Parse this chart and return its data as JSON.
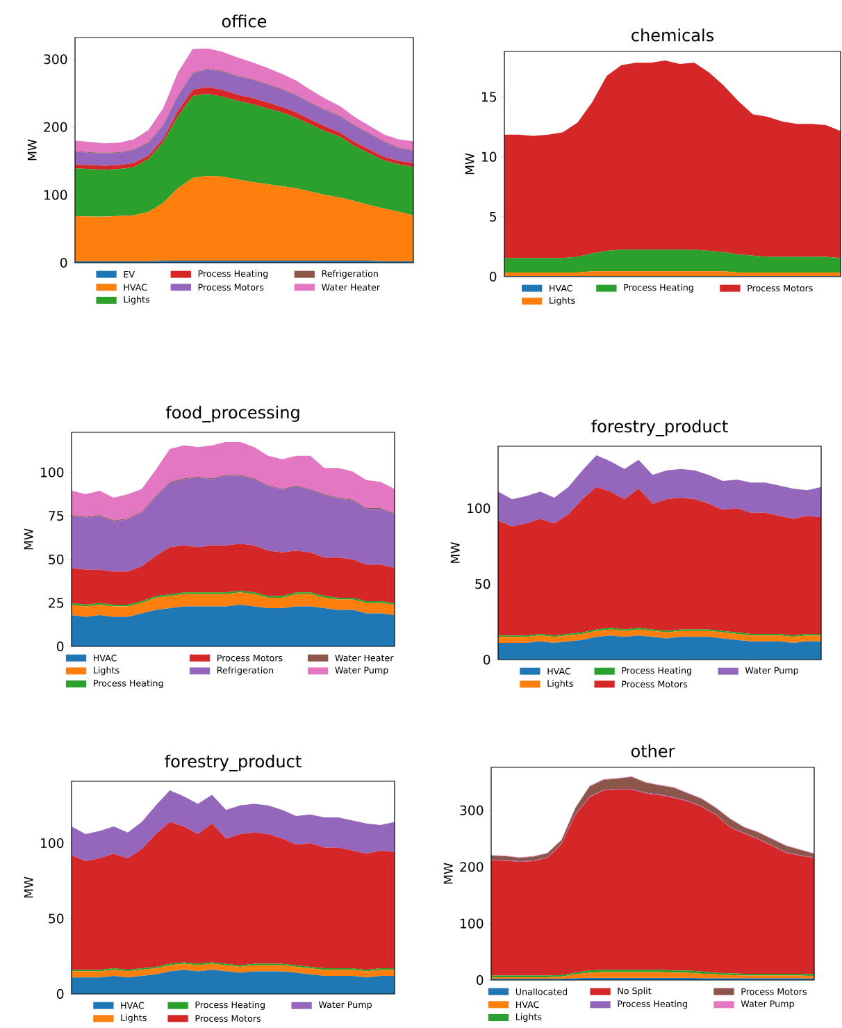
{
  "chart_data": [
    {
      "type": "area",
      "stacked": true,
      "title": "office",
      "ylabel": "MW",
      "legend": "bottom",
      "tick_labels": "y",
      "categories": [
        null,
        null,
        null,
        null,
        null,
        null,
        null,
        null,
        null,
        null,
        null,
        null,
        null,
        null,
        null,
        null,
        null,
        null,
        null,
        null,
        null,
        null,
        null,
        null
      ],
      "ylim": [
        0,
        332
      ],
      "yticks": [
        0,
        100,
        200,
        300
      ],
      "series": [
        {
          "name": "EV",
          "color": "#1f77b4",
          "values": [
            2,
            2,
            2,
            2,
            2,
            2,
            3,
            3,
            3,
            3,
            3,
            3,
            3,
            3,
            3,
            3,
            3,
            3,
            3,
            3,
            3,
            2,
            2,
            2
          ]
        },
        {
          "name": "HVAC",
          "color": "#ff7f0e",
          "values": [
            67,
            66,
            66,
            67,
            68,
            73,
            85,
            107,
            122,
            125,
            124,
            120,
            116,
            113,
            110,
            107,
            102,
            97,
            93,
            88,
            82,
            78,
            73,
            68
          ]
        },
        {
          "name": "Lights",
          "color": "#2ca02c",
          "values": [
            70,
            70,
            69,
            69,
            71,
            78,
            90,
            106,
            121,
            121,
            118,
            116,
            115,
            112,
            109,
            104,
            99,
            94,
            90,
            81,
            76,
            71,
            70,
            71
          ]
        },
        {
          "name": "Process Heating",
          "color": "#d62728",
          "values": [
            6,
            6,
            6,
            6,
            6,
            5,
            5,
            8,
            9,
            10,
            10,
            9,
            9,
            9,
            8,
            8,
            7,
            7,
            6,
            6,
            6,
            5,
            5,
            6
          ]
        },
        {
          "name": "Process Motors",
          "color": "#9467bd",
          "values": [
            19,
            18,
            18,
            18,
            19,
            19,
            20,
            22,
            24,
            26,
            27,
            27,
            27,
            26,
            26,
            25,
            24,
            24,
            24,
            24,
            23,
            22,
            19,
            18
          ]
        },
        {
          "name": "Refrigeration",
          "color": "#8c564b",
          "values": [
            1,
            1,
            1,
            1,
            1,
            1,
            1,
            1,
            1,
            1,
            1,
            1,
            1,
            1,
            1,
            1,
            1,
            1,
            1,
            1,
            1,
            1,
            1,
            1
          ]
        },
        {
          "name": "Water Heater",
          "color": "#e377c2",
          "values": [
            15,
            15,
            14,
            14,
            15,
            18,
            24,
            34,
            35,
            30,
            28,
            27,
            25,
            24,
            22,
            21,
            19,
            16,
            14,
            12,
            11,
            10,
            12,
            13
          ]
        }
      ]
    },
    {
      "type": "area",
      "stacked": true,
      "title": "chemicals",
      "ylabel": "MW",
      "legend": "bottom",
      "tick_labels": "y",
      "categories": [
        null,
        null,
        null,
        null,
        null,
        null,
        null,
        null,
        null,
        null,
        null,
        null,
        null,
        null,
        null,
        null,
        null,
        null,
        null,
        null,
        null,
        null,
        null,
        null
      ],
      "ylim": [
        0,
        18.8
      ],
      "yticks": [
        0,
        5,
        10,
        15
      ],
      "series": [
        {
          "name": "HVAC",
          "color": "#1f77b4",
          "values": [
            0.05,
            0.05,
            0.05,
            0.05,
            0.05,
            0.05,
            0.05,
            0.05,
            0.05,
            0.05,
            0.05,
            0.05,
            0.05,
            0.05,
            0.05,
            0.05,
            0.05,
            0.05,
            0.05,
            0.05,
            0.05,
            0.05,
            0.05,
            0.05
          ]
        },
        {
          "name": "Lights",
          "color": "#ff7f0e",
          "values": [
            0.3,
            0.3,
            0.3,
            0.3,
            0.3,
            0.3,
            0.4,
            0.4,
            0.4,
            0.4,
            0.4,
            0.4,
            0.4,
            0.4,
            0.4,
            0.4,
            0.3,
            0.3,
            0.3,
            0.3,
            0.3,
            0.3,
            0.3,
            0.3
          ]
        },
        {
          "name": "Process Heating",
          "color": "#2ca02c",
          "values": [
            1.2,
            1.2,
            1.2,
            1.2,
            1.2,
            1.3,
            1.5,
            1.7,
            1.8,
            1.8,
            1.8,
            1.8,
            1.8,
            1.8,
            1.7,
            1.6,
            1.5,
            1.4,
            1.3,
            1.3,
            1.3,
            1.3,
            1.3,
            1.2
          ]
        },
        {
          "name": "Process Motors",
          "color": "#d62728",
          "values": [
            10.3,
            10.3,
            10.2,
            10.3,
            10.5,
            11.2,
            12.6,
            14.6,
            15.4,
            15.6,
            15.6,
            15.8,
            15.5,
            15.6,
            14.9,
            13.9,
            12.8,
            11.8,
            11.7,
            11.3,
            11.1,
            11.1,
            11.0,
            10.6
          ]
        }
      ]
    },
    {
      "type": "area",
      "stacked": true,
      "title": "food_processing",
      "ylabel": "MW",
      "legend": "bottom",
      "tick_labels": "y",
      "categories": [
        null,
        null,
        null,
        null,
        null,
        null,
        null,
        null,
        null,
        null,
        null,
        null,
        null,
        null,
        null,
        null,
        null,
        null,
        null,
        null,
        null,
        null,
        null,
        null
      ],
      "ylim": [
        0,
        123
      ],
      "yticks": [
        0,
        25,
        50,
        75,
        100
      ],
      "series": [
        {
          "name": "HVAC",
          "color": "#1f77b4",
          "values": [
            18,
            17,
            18,
            17,
            17,
            19,
            21,
            22,
            23,
            23,
            23,
            23,
            24,
            23,
            22,
            22,
            23,
            23,
            22,
            21,
            21,
            19,
            19,
            18
          ]
        },
        {
          "name": "Lights",
          "color": "#ff7f0e",
          "values": [
            6,
            6,
            6,
            6,
            6,
            6,
            7,
            7,
            7,
            7,
            7,
            7,
            7,
            7,
            6,
            6,
            7,
            7,
            6,
            6,
            6,
            6,
            6,
            6
          ]
        },
        {
          "name": "Process Heating",
          "color": "#2ca02c",
          "values": [
            1,
            1,
            1,
            1,
            1,
            1,
            1,
            1,
            1,
            1,
            1,
            1,
            1,
            1,
            1,
            1,
            1,
            1,
            1,
            1,
            1,
            1,
            1,
            1
          ]
        },
        {
          "name": "Process Motors",
          "color": "#d62728",
          "values": [
            20,
            20,
            19,
            19,
            19,
            20,
            23,
            27,
            27,
            26,
            27,
            27,
            27,
            27,
            26,
            25,
            24,
            23,
            22,
            23,
            22,
            21,
            21,
            20
          ]
        },
        {
          "name": "Refrigeration",
          "color": "#9467bd",
          "values": [
            30,
            30,
            31,
            29,
            30,
            31,
            34,
            37,
            38,
            40,
            38,
            40,
            39,
            38,
            37,
            36,
            37,
            36,
            36,
            34,
            34,
            32,
            32,
            31
          ]
        },
        {
          "name": "Water Heater",
          "color": "#8c564b",
          "values": [
            0.5,
            0.5,
            0.5,
            0.5,
            0.5,
            0.5,
            0.5,
            0.5,
            0.5,
            0.5,
            0.5,
            0.5,
            0.5,
            0.5,
            0.5,
            0.5,
            0.5,
            0.5,
            0.5,
            0.5,
            0.5,
            0.5,
            0.5,
            0.5
          ]
        },
        {
          "name": "Water Pump",
          "color": "#e377c2",
          "values": [
            14,
            13,
            14,
            13,
            14,
            13,
            15,
            19,
            19,
            17,
            19,
            19,
            19,
            18,
            17,
            17,
            17,
            19,
            15,
            17,
            16,
            16,
            15,
            14
          ]
        }
      ]
    },
    {
      "type": "area",
      "stacked": true,
      "title": "forestry_product",
      "ylabel": "MW",
      "legend": "bottom",
      "tick_labels": "y",
      "categories": [
        null,
        null,
        null,
        null,
        null,
        null,
        null,
        null,
        null,
        null,
        null,
        null,
        null,
        null,
        null,
        null,
        null,
        null,
        null,
        null,
        null,
        null,
        null,
        null
      ],
      "ylim": [
        0,
        141
      ],
      "yticks": [
        0,
        50,
        100
      ],
      "series": [
        {
          "name": "HVAC",
          "color": "#1f77b4",
          "values": [
            11,
            11,
            11,
            12,
            11,
            12,
            13,
            15,
            16,
            15,
            16,
            15,
            14,
            15,
            15,
            15,
            14,
            13,
            12,
            12,
            12,
            11,
            12,
            12
          ]
        },
        {
          "name": "Lights",
          "color": "#ff7f0e",
          "values": [
            4,
            4,
            4,
            4,
            4,
            4,
            4,
            4,
            4,
            4,
            4,
            4,
            4,
            4,
            4,
            4,
            4,
            4,
            4,
            4,
            4,
            4,
            4,
            4
          ]
        },
        {
          "name": "Process Heating",
          "color": "#2ca02c",
          "values": [
            1,
            1,
            1,
            1,
            1,
            1,
            1,
            1,
            1,
            1,
            1,
            1,
            1,
            1,
            1,
            1,
            1,
            1,
            1,
            1,
            1,
            1,
            1,
            1
          ]
        },
        {
          "name": "Process Motors",
          "color": "#d62728",
          "values": [
            76,
            72,
            74,
            76,
            74,
            79,
            88,
            94,
            90,
            86,
            92,
            83,
            87,
            87,
            86,
            83,
            80,
            82,
            80,
            80,
            78,
            77,
            78,
            77
          ]
        },
        {
          "name": "Water Pump",
          "color": "#9467bd",
          "values": [
            19,
            18,
            18,
            18,
            17,
            18,
            19,
            21,
            20,
            20,
            19,
            19,
            19,
            19,
            19,
            19,
            19,
            19,
            20,
            20,
            20,
            20,
            17,
            20
          ]
        }
      ]
    },
    {
      "type": "area",
      "stacked": true,
      "title": "forestry_product",
      "ylabel": "MW",
      "legend": "bottom",
      "tick_labels": "y",
      "categories": [
        null,
        null,
        null,
        null,
        null,
        null,
        null,
        null,
        null,
        null,
        null,
        null,
        null,
        null,
        null,
        null,
        null,
        null,
        null,
        null,
        null,
        null,
        null,
        null
      ],
      "ylim": [
        0,
        141
      ],
      "yticks": [
        0,
        50,
        100
      ],
      "series": [
        {
          "name": "HVAC",
          "color": "#1f77b4",
          "values": [
            11,
            11,
            11,
            12,
            11,
            12,
            13,
            15,
            16,
            15,
            16,
            15,
            14,
            15,
            15,
            15,
            14,
            13,
            12,
            12,
            12,
            11,
            12,
            12
          ]
        },
        {
          "name": "Lights",
          "color": "#ff7f0e",
          "values": [
            4,
            4,
            4,
            4,
            4,
            4,
            4,
            4,
            4,
            4,
            4,
            4,
            4,
            4,
            4,
            4,
            4,
            4,
            4,
            4,
            4,
            4,
            4,
            4
          ]
        },
        {
          "name": "Process Heating",
          "color": "#2ca02c",
          "values": [
            1,
            1,
            1,
            1,
            1,
            1,
            1,
            1,
            1,
            1,
            1,
            1,
            1,
            1,
            1,
            1,
            1,
            1,
            1,
            1,
            1,
            1,
            1,
            1
          ]
        },
        {
          "name": "Process Motors",
          "color": "#d62728",
          "values": [
            76,
            72,
            74,
            76,
            74,
            79,
            88,
            94,
            90,
            86,
            92,
            83,
            87,
            87,
            86,
            83,
            80,
            82,
            80,
            80,
            78,
            77,
            78,
            77
          ]
        },
        {
          "name": "Water Pump",
          "color": "#9467bd",
          "values": [
            19,
            18,
            18,
            18,
            17,
            18,
            19,
            21,
            20,
            20,
            19,
            19,
            19,
            19,
            19,
            19,
            19,
            19,
            20,
            20,
            20,
            20,
            17,
            20
          ]
        }
      ]
    },
    {
      "type": "area",
      "stacked": true,
      "title": "other",
      "ylabel": "MW",
      "legend": "bottom",
      "tick_labels": "y",
      "categories": [
        null,
        null,
        null,
        null,
        null,
        null,
        null,
        null,
        null,
        null,
        null,
        null,
        null,
        null,
        null,
        null,
        null,
        null,
        null,
        null,
        null,
        null,
        null,
        null
      ],
      "ylim": [
        0,
        376
      ],
      "yticks": [
        0,
        100,
        200,
        300
      ],
      "series": [
        {
          "name": "Unallocated",
          "color": "#1f77b4",
          "values": [
            2,
            2,
            2,
            2,
            2,
            2,
            3,
            4,
            4,
            4,
            4,
            4,
            4,
            4,
            4,
            3,
            3,
            3,
            3,
            3,
            3,
            3,
            3,
            2
          ]
        },
        {
          "name": "HVAC",
          "color": "#ff7f0e",
          "values": [
            3,
            3,
            3,
            3,
            3,
            4,
            7,
            9,
            10,
            10,
            10,
            10,
            10,
            9,
            9,
            8,
            7,
            6,
            5,
            5,
            5,
            5,
            5,
            5
          ]
        },
        {
          "name": "Lights",
          "color": "#2ca02c",
          "values": [
            3,
            3,
            3,
            3,
            3,
            3,
            3,
            4,
            4,
            4,
            4,
            4,
            4,
            4,
            4,
            4,
            3,
            3,
            3,
            3,
            3,
            3,
            3,
            3
          ]
        },
        {
          "name": "No Split",
          "color": "#d62728",
          "values": [
            204,
            203,
            201,
            202,
            208,
            231,
            279,
            306,
            317,
            319,
            319,
            312,
            309,
            305,
            299,
            291,
            279,
            258,
            248,
            238,
            226,
            214,
            209,
            206
          ]
        },
        {
          "name": "Process Heating",
          "color": "#9467bd",
          "values": [
            1,
            1,
            1,
            1,
            1,
            1,
            1,
            1,
            1,
            1,
            1,
            1,
            1,
            1,
            1,
            1,
            1,
            1,
            1,
            1,
            1,
            1,
            1,
            1
          ]
        },
        {
          "name": "Process Motors",
          "color": "#8c564b",
          "values": [
            7,
            7,
            6,
            7,
            7,
            6,
            11,
            18,
            18,
            18,
            21,
            18,
            16,
            17,
            13,
            13,
            11,
            14,
            10,
            11,
            11,
            11,
            9,
            6
          ]
        },
        {
          "name": "Water Pump",
          "color": "#e377c2",
          "values": [
            1,
            1,
            1,
            1,
            1,
            1,
            1,
            1,
            1,
            1,
            1,
            1,
            1,
            1,
            1,
            1,
            1,
            1,
            1,
            1,
            1,
            1,
            1,
            1
          ]
        }
      ]
    }
  ]
}
